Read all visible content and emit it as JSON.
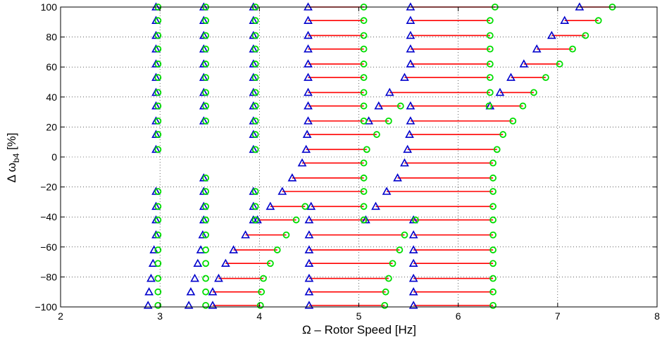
{
  "chart_data": {
    "type": "scatter",
    "title": "",
    "xlabel": "Ω – Rotor Speed [Hz]",
    "ylabel_main": "Δ ω",
    "ylabel_sub": "b4",
    "ylabel_unit": " [%]",
    "xlim": [
      2,
      8
    ],
    "ylim": [
      -100,
      100
    ],
    "xticks": [
      2,
      3,
      4,
      5,
      6,
      7,
      8
    ],
    "yticks": [
      -100,
      -80,
      -60,
      -40,
      -20,
      0,
      20,
      40,
      60,
      80,
      100
    ],
    "xtick_labels": [
      "2",
      "3",
      "4",
      "5",
      "6",
      "7",
      "8"
    ],
    "ytick_labels": [
      "−100",
      "−80",
      "−60",
      "−40",
      "−20",
      "0",
      "20",
      "40",
      "60",
      "80",
      "100"
    ],
    "grid": true,
    "colors": {
      "segment": "#ff0000",
      "start_marker": "#0000cc",
      "end_marker": "#00dd00"
    },
    "series": [
      {
        "marker": "triangle",
        "y": 100,
        "x": [
          2.96,
          3.44,
          3.94,
          4.49,
          5.52,
          7.22
        ]
      },
      {
        "marker": "circle",
        "y": 100,
        "x": [
          2.98,
          3.46,
          3.96,
          5.05,
          6.37,
          7.55
        ]
      },
      {
        "marker": "triangle",
        "y": 91,
        "x": [
          2.96,
          3.44,
          3.94,
          4.49,
          5.52,
          7.07
        ]
      },
      {
        "marker": "circle",
        "y": 91,
        "x": [
          2.98,
          3.46,
          3.96,
          5.05,
          6.32,
          7.41
        ]
      },
      {
        "marker": "triangle",
        "y": 81,
        "x": [
          2.96,
          3.44,
          3.94,
          4.49,
          5.52,
          6.94
        ]
      },
      {
        "marker": "circle",
        "y": 81,
        "x": [
          2.98,
          3.46,
          3.96,
          5.05,
          6.32,
          7.28
        ]
      },
      {
        "marker": "triangle",
        "y": 72,
        "x": [
          2.96,
          3.44,
          3.94,
          4.49,
          5.52,
          6.79
        ]
      },
      {
        "marker": "circle",
        "y": 72,
        "x": [
          2.98,
          3.46,
          3.96,
          5.05,
          6.32,
          7.15
        ]
      },
      {
        "marker": "triangle",
        "y": 62,
        "x": [
          2.96,
          3.44,
          3.94,
          4.49,
          5.52,
          6.66
        ]
      },
      {
        "marker": "circle",
        "y": 62,
        "x": [
          2.98,
          3.46,
          3.96,
          5.05,
          6.32,
          7.02
        ]
      },
      {
        "marker": "triangle",
        "y": 53,
        "x": [
          2.96,
          3.44,
          3.94,
          4.49,
          5.46,
          6.53
        ]
      },
      {
        "marker": "circle",
        "y": 53,
        "x": [
          2.98,
          3.46,
          3.96,
          5.05,
          6.32,
          6.88
        ]
      },
      {
        "marker": "triangle",
        "y": 43,
        "x": [
          2.96,
          3.44,
          3.94,
          4.49,
          5.31,
          6.42
        ]
      },
      {
        "marker": "circle",
        "y": 43,
        "x": [
          2.98,
          3.46,
          3.96,
          5.05,
          6.32,
          6.76
        ]
      },
      {
        "marker": "triangle",
        "y": 34,
        "x": [
          2.96,
          3.44,
          3.94,
          4.49,
          5.2,
          5.52,
          6.32
        ]
      },
      {
        "marker": "circle",
        "y": 34,
        "x": [
          2.98,
          3.46,
          3.96,
          5.05,
          5.42,
          6.31,
          6.65
        ]
      },
      {
        "marker": "triangle",
        "y": 24,
        "x": [
          2.96,
          3.44,
          3.94,
          4.49,
          5.1,
          5.52
        ]
      },
      {
        "marker": "circle",
        "y": 24,
        "x": [
          2.98,
          3.46,
          3.96,
          5.05,
          5.3,
          6.55
        ]
      },
      {
        "marker": "triangle",
        "y": 15,
        "x": [
          2.96,
          3.94,
          4.48,
          5.51
        ]
      },
      {
        "marker": "circle",
        "y": 15,
        "x": [
          2.98,
          3.96,
          5.18,
          6.45
        ]
      },
      {
        "marker": "triangle",
        "y": 5,
        "x": [
          2.96,
          3.94,
          4.47,
          5.49
        ]
      },
      {
        "marker": "circle",
        "y": 5,
        "x": [
          2.98,
          3.96,
          5.08,
          6.39
        ]
      },
      {
        "marker": "triangle",
        "y": -4,
        "x": [
          4.43,
          5.46
        ]
      },
      {
        "marker": "circle",
        "y": -4,
        "x": [
          5.05,
          6.35
        ]
      },
      {
        "marker": "triangle",
        "y": -14,
        "x": [
          3.44,
          4.33,
          5.39
        ]
      },
      {
        "marker": "circle",
        "y": -14,
        "x": [
          3.46,
          5.05,
          6.35
        ]
      },
      {
        "marker": "triangle",
        "y": -23,
        "x": [
          2.96,
          3.44,
          3.94,
          4.23,
          5.28
        ]
      },
      {
        "marker": "circle",
        "y": -23,
        "x": [
          2.98,
          3.46,
          3.96,
          5.05,
          6.35
        ]
      },
      {
        "marker": "triangle",
        "y": -33,
        "x": [
          2.96,
          3.44,
          3.94,
          4.11,
          4.52,
          5.17
        ]
      },
      {
        "marker": "circle",
        "y": -33,
        "x": [
          2.98,
          3.46,
          3.96,
          4.46,
          5.05,
          6.35
        ]
      },
      {
        "marker": "triangle",
        "y": -42,
        "x": [
          2.96,
          3.44,
          3.94,
          3.98,
          4.5,
          5.07,
          5.55
        ]
      },
      {
        "marker": "circle",
        "y": -42,
        "x": [
          2.98,
          3.46,
          3.96,
          4.37,
          5.05,
          5.57,
          6.35
        ]
      },
      {
        "marker": "triangle",
        "y": -52,
        "x": [
          2.96,
          3.43,
          3.86,
          4.5,
          5.55
        ]
      },
      {
        "marker": "circle",
        "y": -52,
        "x": [
          2.98,
          3.46,
          4.27,
          5.46,
          6.35
        ]
      },
      {
        "marker": "triangle",
        "y": -62,
        "x": [
          2.94,
          3.41,
          3.74,
          4.5,
          5.55
        ]
      },
      {
        "marker": "circle",
        "y": -62,
        "x": [
          2.98,
          3.46,
          4.18,
          5.41,
          6.35
        ]
      },
      {
        "marker": "triangle",
        "y": -71,
        "x": [
          2.93,
          3.38,
          3.66,
          4.5,
          5.55
        ]
      },
      {
        "marker": "circle",
        "y": -71,
        "x": [
          2.98,
          3.46,
          4.11,
          5.34,
          6.35
        ]
      },
      {
        "marker": "triangle",
        "y": -81,
        "x": [
          2.91,
          3.35,
          3.59,
          4.5,
          5.55
        ]
      },
      {
        "marker": "circle",
        "y": -81,
        "x": [
          2.98,
          3.46,
          4.04,
          5.3,
          6.35
        ]
      },
      {
        "marker": "triangle",
        "y": -90,
        "x": [
          2.89,
          3.31,
          3.53,
          4.5,
          5.55
        ]
      },
      {
        "marker": "circle",
        "y": -90,
        "x": [
          2.98,
          3.46,
          4.02,
          5.27,
          6.35
        ]
      },
      {
        "marker": "triangle",
        "y": -99,
        "x": [
          2.88,
          3.29,
          3.53,
          4.5,
          5.55
        ]
      },
      {
        "marker": "circle",
        "y": -99,
        "x": [
          2.98,
          3.46,
          4.01,
          5.26,
          6.35
        ]
      }
    ],
    "segments": [
      {
        "y": 100,
        "x0": 4.49,
        "x1": 5.05
      },
      {
        "y": 100,
        "x0": 5.52,
        "x1": 6.37
      },
      {
        "y": 100,
        "x0": 7.22,
        "x1": 7.55
      },
      {
        "y": 91,
        "x0": 4.49,
        "x1": 5.05
      },
      {
        "y": 91,
        "x0": 5.52,
        "x1": 6.32
      },
      {
        "y": 91,
        "x0": 7.07,
        "x1": 7.41
      },
      {
        "y": 81,
        "x0": 4.49,
        "x1": 5.05
      },
      {
        "y": 81,
        "x0": 5.52,
        "x1": 6.32
      },
      {
        "y": 81,
        "x0": 6.94,
        "x1": 7.28
      },
      {
        "y": 72,
        "x0": 4.49,
        "x1": 5.05
      },
      {
        "y": 72,
        "x0": 5.52,
        "x1": 6.32
      },
      {
        "y": 72,
        "x0": 6.79,
        "x1": 7.15
      },
      {
        "y": 62,
        "x0": 4.49,
        "x1": 5.05
      },
      {
        "y": 62,
        "x0": 5.52,
        "x1": 6.32
      },
      {
        "y": 62,
        "x0": 6.66,
        "x1": 7.02
      },
      {
        "y": 53,
        "x0": 4.49,
        "x1": 5.05
      },
      {
        "y": 53,
        "x0": 5.46,
        "x1": 6.32
      },
      {
        "y": 53,
        "x0": 6.53,
        "x1": 6.88
      },
      {
        "y": 43,
        "x0": 4.49,
        "x1": 5.05
      },
      {
        "y": 43,
        "x0": 5.31,
        "x1": 6.32
      },
      {
        "y": 43,
        "x0": 6.42,
        "x1": 6.76
      },
      {
        "y": 34,
        "x0": 4.49,
        "x1": 5.05
      },
      {
        "y": 34,
        "x0": 5.2,
        "x1": 5.42
      },
      {
        "y": 34,
        "x0": 5.52,
        "x1": 6.31
      },
      {
        "y": 34,
        "x0": 6.32,
        "x1": 6.65
      },
      {
        "y": 24,
        "x0": 4.49,
        "x1": 5.05
      },
      {
        "y": 24,
        "x0": 5.1,
        "x1": 5.3
      },
      {
        "y": 24,
        "x0": 5.52,
        "x1": 6.55
      },
      {
        "y": 15,
        "x0": 4.48,
        "x1": 5.18
      },
      {
        "y": 15,
        "x0": 5.51,
        "x1": 6.45
      },
      {
        "y": 5,
        "x0": 4.47,
        "x1": 5.08
      },
      {
        "y": 5,
        "x0": 5.49,
        "x1": 6.39
      },
      {
        "y": -4,
        "x0": 4.43,
        "x1": 5.05
      },
      {
        "y": -4,
        "x0": 5.46,
        "x1": 6.35
      },
      {
        "y": -14,
        "x0": 4.33,
        "x1": 5.05
      },
      {
        "y": -14,
        "x0": 5.39,
        "x1": 6.35
      },
      {
        "y": -23,
        "x0": 4.23,
        "x1": 5.05
      },
      {
        "y": -23,
        "x0": 5.28,
        "x1": 6.35
      },
      {
        "y": -33,
        "x0": 4.11,
        "x1": 4.46
      },
      {
        "y": -33,
        "x0": 4.52,
        "x1": 5.05
      },
      {
        "y": -33,
        "x0": 5.17,
        "x1": 6.35
      },
      {
        "y": -42,
        "x0": 3.98,
        "x1": 4.37
      },
      {
        "y": -42,
        "x0": 4.5,
        "x1": 5.57
      },
      {
        "y": -42,
        "x0": 5.55,
        "x1": 6.35
      },
      {
        "y": -52,
        "x0": 3.86,
        "x1": 4.27
      },
      {
        "y": -52,
        "x0": 4.5,
        "x1": 5.46
      },
      {
        "y": -52,
        "x0": 5.55,
        "x1": 6.35
      },
      {
        "y": -62,
        "x0": 3.74,
        "x1": 4.18
      },
      {
        "y": -62,
        "x0": 4.5,
        "x1": 5.41
      },
      {
        "y": -62,
        "x0": 5.55,
        "x1": 6.35
      },
      {
        "y": -71,
        "x0": 3.66,
        "x1": 4.11
      },
      {
        "y": -71,
        "x0": 4.5,
        "x1": 5.34
      },
      {
        "y": -71,
        "x0": 5.55,
        "x1": 6.35
      },
      {
        "y": -81,
        "x0": 3.59,
        "x1": 4.04
      },
      {
        "y": -81,
        "x0": 4.5,
        "x1": 5.3
      },
      {
        "y": -81,
        "x0": 5.55,
        "x1": 6.35
      },
      {
        "y": -90,
        "x0": 3.53,
        "x1": 4.02
      },
      {
        "y": -90,
        "x0": 4.5,
        "x1": 5.27
      },
      {
        "y": -90,
        "x0": 5.55,
        "x1": 6.35
      },
      {
        "y": -99,
        "x0": 3.53,
        "x1": 4.01
      },
      {
        "y": -99,
        "x0": 4.5,
        "x1": 5.26
      },
      {
        "y": -99,
        "x0": 5.55,
        "x1": 6.35
      }
    ]
  }
}
